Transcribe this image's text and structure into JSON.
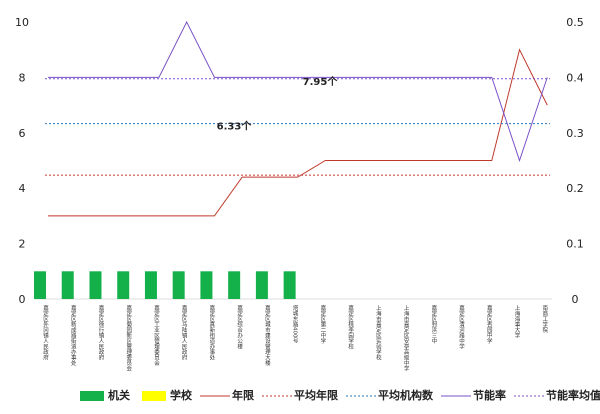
{
  "chart_data": {
    "type": "combo",
    "categories": [
      "嘉定区外冈镇人民政府",
      "嘉定区新成路街道办事处",
      "嘉定区徐行镇人民政府",
      "嘉定区菊园新区管理委员会",
      "嘉定区工业区管理委员会",
      "嘉定区马陆镇人民政府",
      "嘉定区真新街道办事处",
      "嘉定区综合办公楼",
      "嘉定区城市建设管理大楼",
      "塔城东路400号",
      "嘉定区第二中学",
      "嘉定区桃李园学校",
      "上海市嘉定区实验学校",
      "上海市嘉定区安亭高级中学",
      "嘉定区封浜三中",
      "嘉定区清河路中学",
      "嘉定区杏园中学",
      "上海海事大学",
      "南商工学院"
    ],
    "series": [
      {
        "name": "机关",
        "kind": "bar",
        "color": "#14b14a",
        "values": [
          1,
          1,
          1,
          1,
          1,
          1,
          1,
          1,
          1,
          1,
          0,
          0,
          0,
          0,
          0,
          0,
          0,
          0,
          0
        ]
      },
      {
        "name": "学校",
        "kind": "bar",
        "color": "#ffff00",
        "values": [
          0,
          0,
          0,
          0,
          0,
          0,
          0,
          0,
          0,
          0,
          0,
          0,
          0,
          0,
          0,
          0,
          0,
          0,
          0
        ]
      },
      {
        "name": "年限",
        "kind": "line",
        "color": "#c0392b",
        "values": [
          3,
          3,
          3,
          3,
          3,
          3,
          3,
          4.4,
          4.4,
          4.4,
          5,
          5,
          5,
          5,
          5,
          5,
          5,
          9,
          7
        ]
      },
      {
        "name": "平均年限",
        "kind": "hline",
        "color": "#c0392b",
        "value": 4.47
      },
      {
        "name": "平均机构数",
        "kind": "hline",
        "color": "#2e75b6",
        "value": 6.33,
        "value_label": "6.33个"
      },
      {
        "name": "节能率",
        "kind": "line",
        "axis": "y2",
        "color": "#7a52c7",
        "values": [
          0.4,
          0.4,
          0.4,
          0.4,
          0.4,
          0.5,
          0.4,
          0.4,
          0.4,
          0.4,
          0.4,
          0.4,
          0.4,
          0.4,
          0.4,
          0.4,
          0.4,
          0.25,
          0.4
        ]
      },
      {
        "name": "节能率均值",
        "kind": "hline",
        "color": "#7a52c7",
        "value": 7.95,
        "value_label": "7.95个"
      }
    ],
    "ylim": [
      0,
      10
    ],
    "yticks": [
      0,
      2,
      4,
      6,
      8,
      10
    ],
    "y2lim": [
      0,
      0.5
    ],
    "y2ticks": [
      0,
      0.1,
      0.2,
      0.3,
      0.4,
      0.5
    ],
    "legend": "bottom"
  }
}
